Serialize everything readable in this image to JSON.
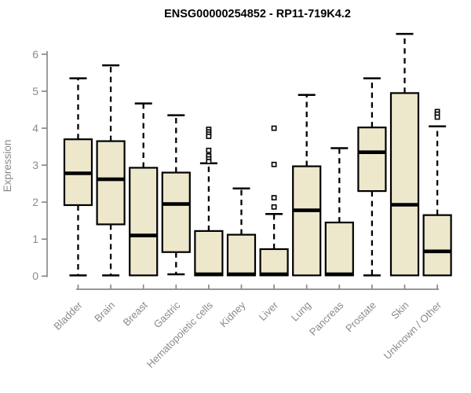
{
  "chart_data": {
    "type": "boxplot",
    "title": "ENSG00000254852 - RP11-719K4.2",
    "ylabel": "Expression",
    "xlabel": "",
    "ylim": [
      0,
      6.6
    ],
    "yticks": [
      "0",
      "1",
      "2",
      "3",
      "4",
      "5",
      "6"
    ],
    "grid": false,
    "legend": "none",
    "colors": {
      "box_fill": "#ede7cc",
      "box_stroke": "#000000",
      "median": "#000000",
      "whisker": "#000000",
      "axis": "#8a8a8a",
      "tick_label": "#8a8a8a",
      "title": "#000000"
    },
    "categories": [
      "Bladder",
      "Brain",
      "Breast",
      "Gastric",
      "Hematopoietic cells",
      "Kidney",
      "Liver",
      "Lung",
      "Pancreas",
      "Prostate",
      "Skin",
      "Unknown / Other"
    ],
    "series": [
      {
        "name": "Bladder",
        "whisker_low": 0.02,
        "q1": 1.92,
        "median": 2.78,
        "q3": 3.7,
        "whisker_high": 5.35,
        "outliers": []
      },
      {
        "name": "Brain",
        "whisker_low": 0.02,
        "q1": 1.4,
        "median": 2.62,
        "q3": 3.65,
        "whisker_high": 5.7,
        "outliers": []
      },
      {
        "name": "Breast",
        "whisker_low": 0.02,
        "q1": 0.02,
        "median": 1.1,
        "q3": 2.93,
        "whisker_high": 4.67,
        "outliers": []
      },
      {
        "name": "Gastric",
        "whisker_low": 0.05,
        "q1": 0.65,
        "median": 1.95,
        "q3": 2.8,
        "whisker_high": 4.35,
        "outliers": []
      },
      {
        "name": "Hematopoietic cells",
        "whisker_low": 0.02,
        "q1": 0.02,
        "median": 0.05,
        "q3": 1.22,
        "whisker_high": 3.05,
        "outliers": [
          3.97,
          3.9,
          3.84,
          3.78,
          3.4,
          3.25,
          3.17,
          3.1
        ]
      },
      {
        "name": "Kidney",
        "whisker_low": 0.02,
        "q1": 0.02,
        "median": 0.05,
        "q3": 1.12,
        "whisker_high": 2.37,
        "outliers": []
      },
      {
        "name": "Liver",
        "whisker_low": 0.02,
        "q1": 0.02,
        "median": 0.05,
        "q3": 0.73,
        "whisker_high": 1.68,
        "outliers": [
          4.0,
          3.02,
          2.12,
          1.87
        ]
      },
      {
        "name": "Lung",
        "whisker_low": 0.02,
        "q1": 0.02,
        "median": 1.78,
        "q3": 2.97,
        "whisker_high": 4.9,
        "outliers": []
      },
      {
        "name": "Pancreas",
        "whisker_low": 0.02,
        "q1": 0.02,
        "median": 0.05,
        "q3": 1.45,
        "whisker_high": 3.46,
        "outliers": []
      },
      {
        "name": "Prostate",
        "whisker_low": 0.02,
        "q1": 2.3,
        "median": 3.35,
        "q3": 4.02,
        "whisker_high": 5.35,
        "outliers": []
      },
      {
        "name": "Skin",
        "whisker_low": 0.02,
        "q1": 0.02,
        "median": 1.93,
        "q3": 4.95,
        "whisker_high": 6.55,
        "outliers": []
      },
      {
        "name": "Unknown / Other",
        "whisker_low": 0.02,
        "q1": 0.02,
        "median": 0.67,
        "q3": 1.65,
        "whisker_high": 4.05,
        "outliers": [
          4.45,
          4.38,
          4.3
        ]
      }
    ]
  }
}
